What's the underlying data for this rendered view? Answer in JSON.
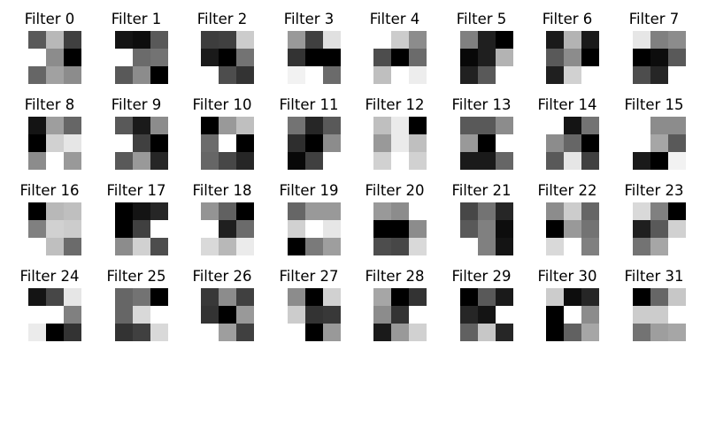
{
  "filters": [
    {
      "title": "Filter 0",
      "weights": [
        [
          0.35,
          0.72,
          0.25
        ],
        [
          1.0,
          0.55,
          0.0
        ],
        [
          0.4,
          0.63,
          0.55
        ]
      ]
    },
    {
      "title": "Filter 1",
      "weights": [
        [
          0.08,
          0.05,
          0.35
        ],
        [
          1.0,
          0.42,
          0.45
        ],
        [
          0.35,
          0.55,
          0.0
        ]
      ]
    },
    {
      "title": "Filter 2",
      "weights": [
        [
          0.24,
          0.25,
          0.8
        ],
        [
          0.1,
          0.0,
          0.45
        ],
        [
          1.0,
          0.3,
          0.2
        ]
      ]
    },
    {
      "title": "Filter 3",
      "weights": [
        [
          0.6,
          0.25,
          0.88
        ],
        [
          0.2,
          0.0,
          0.0
        ],
        [
          0.95,
          1.0,
          0.42
        ]
      ]
    },
    {
      "title": "Filter 4",
      "weights": [
        [
          1.0,
          0.8,
          0.55
        ],
        [
          0.3,
          0.0,
          0.42
        ],
        [
          0.75,
          1.0,
          0.93
        ]
      ]
    },
    {
      "title": "Filter 5",
      "weights": [
        [
          0.5,
          0.12,
          0.0
        ],
        [
          0.03,
          0.12,
          0.7
        ],
        [
          0.13,
          0.35,
          1.0
        ]
      ]
    },
    {
      "title": "Filter 6",
      "weights": [
        [
          0.1,
          0.7,
          0.1
        ],
        [
          0.35,
          0.55,
          0.0
        ],
        [
          0.12,
          0.82,
          1.0
        ]
      ]
    },
    {
      "title": "Filter 7",
      "weights": [
        [
          0.9,
          0.5,
          0.55
        ],
        [
          0.0,
          0.05,
          0.35
        ],
        [
          0.3,
          0.15,
          1.0
        ]
      ]
    },
    {
      "title": "Filter 8",
      "weights": [
        [
          0.08,
          0.62,
          0.4
        ],
        [
          0.0,
          0.82,
          0.9
        ],
        [
          0.55,
          1.0,
          0.6
        ]
      ]
    },
    {
      "title": "Filter 9",
      "weights": [
        [
          0.35,
          0.1,
          0.55
        ],
        [
          1.0,
          0.25,
          0.0
        ],
        [
          0.35,
          0.6,
          0.15
        ]
      ]
    },
    {
      "title": "Filter 10",
      "weights": [
        [
          0.0,
          0.6,
          0.75
        ],
        [
          0.42,
          1.0,
          0.0
        ],
        [
          0.4,
          0.28,
          0.15
        ]
      ]
    },
    {
      "title": "Filter 11",
      "weights": [
        [
          0.45,
          0.15,
          0.35
        ],
        [
          0.18,
          0.0,
          0.55
        ],
        [
          0.03,
          0.25,
          1.0
        ]
      ]
    },
    {
      "title": "Filter 12",
      "weights": [
        [
          0.75,
          0.92,
          0.0
        ],
        [
          0.6,
          0.92,
          0.75
        ],
        [
          0.82,
          1.0,
          0.82
        ]
      ]
    },
    {
      "title": "Filter 13",
      "weights": [
        [
          0.35,
          0.35,
          0.55
        ],
        [
          0.6,
          0.0,
          1.0
        ],
        [
          0.1,
          0.1,
          0.4
        ]
      ]
    },
    {
      "title": "Filter 14",
      "weights": [
        [
          1.0,
          0.08,
          0.45
        ],
        [
          0.55,
          0.4,
          0.0
        ],
        [
          0.35,
          0.9,
          0.25
        ]
      ]
    },
    {
      "title": "Filter 15",
      "weights": [
        [
          1.0,
          0.55,
          0.55
        ],
        [
          1.0,
          0.65,
          0.35
        ],
        [
          0.1,
          0.0,
          0.95
        ]
      ]
    },
    {
      "title": "Filter 16",
      "weights": [
        [
          0.0,
          0.72,
          0.75
        ],
        [
          0.5,
          0.82,
          0.8
        ],
        [
          1.0,
          0.75,
          0.42
        ]
      ]
    },
    {
      "title": "Filter 17",
      "weights": [
        [
          0.0,
          0.08,
          0.15
        ],
        [
          0.0,
          0.25,
          1.0
        ],
        [
          0.55,
          0.82,
          0.3
        ]
      ]
    },
    {
      "title": "Filter 18",
      "weights": [
        [
          0.58,
          0.38,
          0.0
        ],
        [
          1.0,
          0.12,
          0.42
        ],
        [
          0.85,
          0.72,
          0.92
        ]
      ]
    },
    {
      "title": "Filter 19",
      "weights": [
        [
          0.4,
          0.6,
          0.6
        ],
        [
          0.82,
          1.0,
          0.9
        ],
        [
          0.0,
          0.48,
          0.62
        ]
      ]
    },
    {
      "title": "Filter 20",
      "weights": [
        [
          0.6,
          0.55,
          1.0
        ],
        [
          0.0,
          0.0,
          0.55
        ],
        [
          0.3,
          0.28,
          0.85
        ]
      ]
    },
    {
      "title": "Filter 21",
      "weights": [
        [
          0.28,
          0.45,
          0.15
        ],
        [
          0.35,
          0.5,
          0.05
        ],
        [
          1.0,
          0.5,
          0.08
        ]
      ]
    },
    {
      "title": "Filter 22",
      "weights": [
        [
          0.55,
          0.8,
          0.4
        ],
        [
          0.0,
          0.6,
          0.45
        ],
        [
          0.85,
          1.0,
          0.5
        ]
      ]
    },
    {
      "title": "Filter 23",
      "weights": [
        [
          0.85,
          0.5,
          0.0
        ],
        [
          0.12,
          0.35,
          0.82
        ],
        [
          0.45,
          0.65,
          1.0
        ]
      ]
    },
    {
      "title": "Filter 24",
      "weights": [
        [
          0.08,
          0.28,
          0.9
        ],
        [
          1.0,
          1.0,
          0.5
        ],
        [
          0.92,
          0.0,
          0.2
        ]
      ]
    },
    {
      "title": "Filter 25",
      "weights": [
        [
          0.4,
          0.45,
          0.0
        ],
        [
          0.4,
          0.85,
          1.0
        ],
        [
          0.2,
          0.25,
          0.85
        ]
      ]
    },
    {
      "title": "Filter 26",
      "weights": [
        [
          0.22,
          0.55,
          0.25
        ],
        [
          0.2,
          0.0,
          0.6
        ],
        [
          1.0,
          0.62,
          0.25
        ]
      ]
    },
    {
      "title": "Filter 27",
      "weights": [
        [
          0.55,
          0.0,
          0.82
        ],
        [
          0.8,
          0.2,
          0.22
        ],
        [
          1.0,
          0.0,
          0.6
        ]
      ]
    },
    {
      "title": "Filter 28",
      "weights": [
        [
          0.65,
          0.0,
          0.2
        ],
        [
          0.55,
          0.2,
          1.0
        ],
        [
          0.1,
          0.6,
          0.82
        ]
      ]
    },
    {
      "title": "Filter 29",
      "weights": [
        [
          0.0,
          0.35,
          0.1
        ],
        [
          0.15,
          0.08,
          1.0
        ],
        [
          0.38,
          0.78,
          0.15
        ]
      ]
    },
    {
      "title": "Filter 30",
      "weights": [
        [
          0.8,
          0.05,
          0.15
        ],
        [
          0.0,
          1.0,
          0.55
        ],
        [
          0.0,
          0.38,
          0.65
        ]
      ]
    },
    {
      "title": "Filter 31",
      "weights": [
        [
          0.0,
          0.4,
          0.78
        ],
        [
          0.8,
          0.8,
          1.0
        ],
        [
          0.45,
          0.62,
          0.65
        ]
      ]
    }
  ]
}
